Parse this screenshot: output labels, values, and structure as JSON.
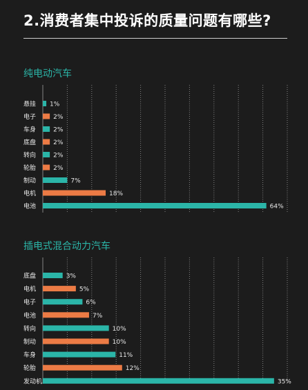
{
  "title": "2.消费者集中投诉的质量问题有哪些?",
  "colors": {
    "teal": "#2bb5a8",
    "orange": "#ec7b45",
    "grid": "#d8d8d8",
    "background": "#1c1c1c"
  },
  "chart_data": [
    {
      "type": "bar",
      "orientation": "horizontal",
      "title": "纯电动汽车",
      "categories": [
        "悬挂",
        "电子",
        "车身",
        "底盘",
        "转向",
        "轮胎",
        "制动",
        "电机",
        "电池"
      ],
      "values": [
        1,
        2,
        2,
        2,
        2,
        2,
        7,
        18,
        64
      ],
      "value_labels": [
        "1%",
        "2%",
        "2%",
        "2%",
        "2%",
        "2%",
        "7%",
        "18%",
        "64%"
      ],
      "bar_colors": [
        "teal",
        "orange",
        "teal",
        "orange",
        "teal",
        "orange",
        "teal",
        "orange",
        "teal"
      ],
      "unit": "%",
      "xlim": [
        0,
        70
      ],
      "grid": true
    },
    {
      "type": "bar",
      "orientation": "horizontal",
      "title": "插电式混合动力汽车",
      "categories": [
        "底盘",
        "电机",
        "电子",
        "电池",
        "转向",
        "制动",
        "车身",
        "轮胎",
        "发动机"
      ],
      "values": [
        3,
        5,
        6,
        7,
        10,
        10,
        11,
        12,
        35
      ],
      "value_labels": [
        "3%",
        "5%",
        "6%",
        "7%",
        "10%",
        "10%",
        "11%",
        "12%",
        "35%"
      ],
      "bar_colors": [
        "teal",
        "orange",
        "teal",
        "orange",
        "teal",
        "orange",
        "teal",
        "orange",
        "teal"
      ],
      "unit": "%",
      "xlim": [
        0,
        37
      ],
      "grid": true
    }
  ]
}
